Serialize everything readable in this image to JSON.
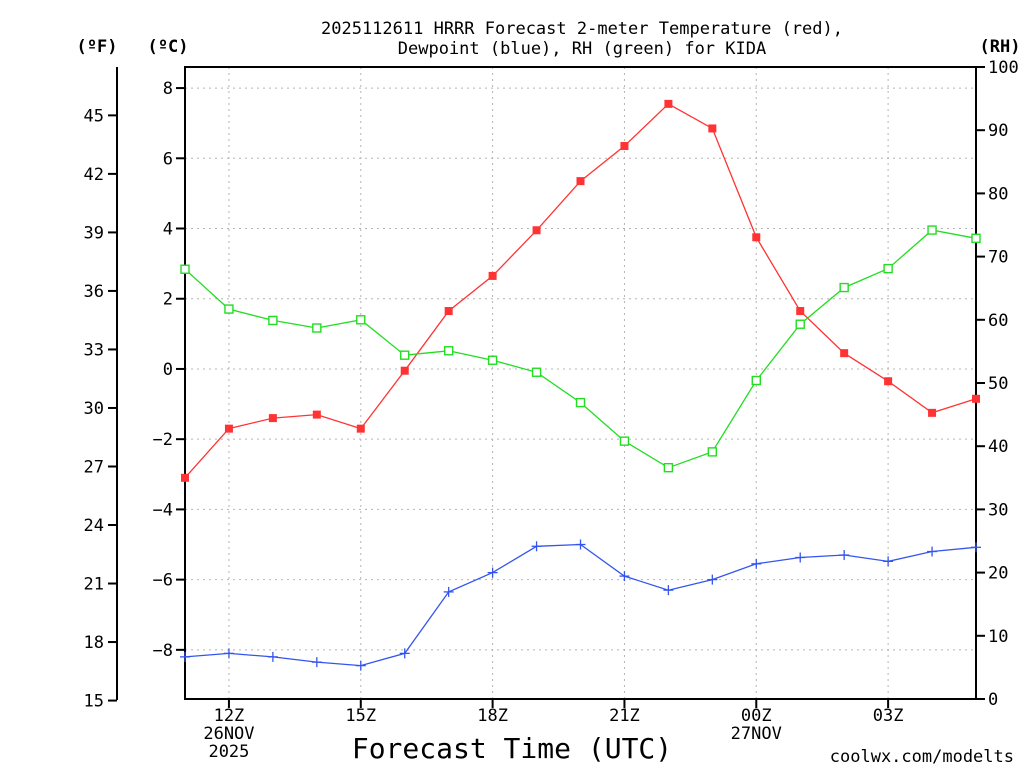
{
  "chart_data": {
    "type": "line",
    "title": [
      "2025112611 HRRR Forecast 2-meter Temperature (red),",
      "Dewpoint (blue), RH (green) for KIDA"
    ],
    "xlabel": "Forecast Time (UTC)",
    "x": [
      11,
      12,
      13,
      14,
      15,
      16,
      17,
      18,
      19,
      20,
      21,
      22,
      23,
      24,
      25,
      26,
      27,
      28,
      29
    ],
    "xlim": [
      11,
      29
    ],
    "x_ticks": [
      {
        "x": 12,
        "lines": [
          "12Z",
          "26NOV",
          "2025"
        ]
      },
      {
        "x": 15,
        "lines": [
          "15Z"
        ]
      },
      {
        "x": 18,
        "lines": [
          "18Z"
        ]
      },
      {
        "x": 21,
        "lines": [
          "21Z"
        ]
      },
      {
        "x": 24,
        "lines": [
          "00Z",
          "27NOV"
        ]
      },
      {
        "x": 27,
        "lines": [
          "03Z"
        ]
      }
    ],
    "left_axis_c": {
      "unit": "(ºC)",
      "ylim": [
        -9.4,
        8.6
      ],
      "ticks": [
        "8",
        "6",
        "4",
        "2",
        "0",
        "−2",
        "−4",
        "−6",
        "−8"
      ],
      "tick_values": [
        8,
        6,
        4,
        2,
        0,
        -2,
        -4,
        -6,
        -8
      ]
    },
    "left_axis_f": {
      "unit": "(ºF)",
      "ticks": [
        "45",
        "42",
        "39",
        "36",
        "33",
        "30",
        "27",
        "24",
        "21",
        "18",
        "15"
      ],
      "tick_values": [
        45,
        42,
        39,
        36,
        33,
        30,
        27,
        24,
        21,
        18,
        15
      ]
    },
    "right_axis_rh": {
      "unit": "(RH)",
      "ylim": [
        0,
        100
      ],
      "ticks": [
        "100",
        "90",
        "80",
        "70",
        "60",
        "50",
        "40",
        "30",
        "20",
        "10",
        "0"
      ],
      "tick_values": [
        100,
        90,
        80,
        70,
        60,
        50,
        40,
        30,
        20,
        10,
        0
      ]
    },
    "series": [
      {
        "name": "Temperature",
        "axis": "c",
        "color": "#ff3333",
        "marker": "filled-square",
        "values": [
          -3.1,
          -1.7,
          -1.4,
          -1.3,
          -1.7,
          -0.05,
          1.65,
          2.65,
          3.95,
          5.35,
          6.35,
          7.55,
          6.85,
          3.75,
          1.65,
          0.45,
          -0.35,
          -1.25,
          -0.85
        ]
      },
      {
        "name": "Dewpoint",
        "axis": "c",
        "color": "#3355ee",
        "marker": "plus",
        "values": [
          -8.2,
          -8.1,
          -8.2,
          -8.35,
          -8.45,
          -8.1,
          -6.35,
          -5.8,
          -5.05,
          -5.0,
          -5.9,
          -6.3,
          -6.0,
          -5.55,
          -5.37,
          -5.3,
          -5.48,
          -5.2,
          -5.08
        ]
      },
      {
        "name": "RH",
        "axis": "rh",
        "color": "#22dd22",
        "marker": "open-square",
        "values": [
          68,
          61.7,
          59.9,
          58.7,
          60,
          54.4,
          55.1,
          53.6,
          51.7,
          46.9,
          40.8,
          36.6,
          39.1,
          50.4,
          59.3,
          65.1,
          68.1,
          74.2,
          72.9
        ]
      }
    ]
  },
  "credit": "coolwx.com/modelts",
  "colors": {
    "temperature": "#ff3333",
    "dewpoint": "#3355ee",
    "rh": "#22dd22",
    "credit": "#ee3333"
  }
}
